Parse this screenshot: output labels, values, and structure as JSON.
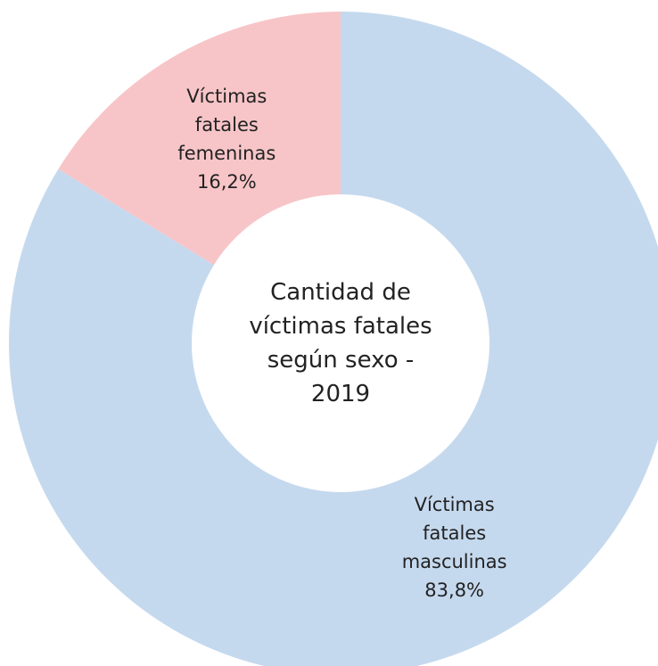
{
  "chart_data": {
    "type": "donut",
    "title": "Cantidad de víctimas fatales según sexo - 2019",
    "categories": [
      "Víctimas fatales masculinas",
      "Víctimas fatales femeninas"
    ],
    "values": [
      83.8,
      16.2
    ],
    "value_labels": [
      "83,8%",
      "16,2%"
    ],
    "colors": [
      "#c5d9ee",
      "#f7c5c8"
    ]
  }
}
